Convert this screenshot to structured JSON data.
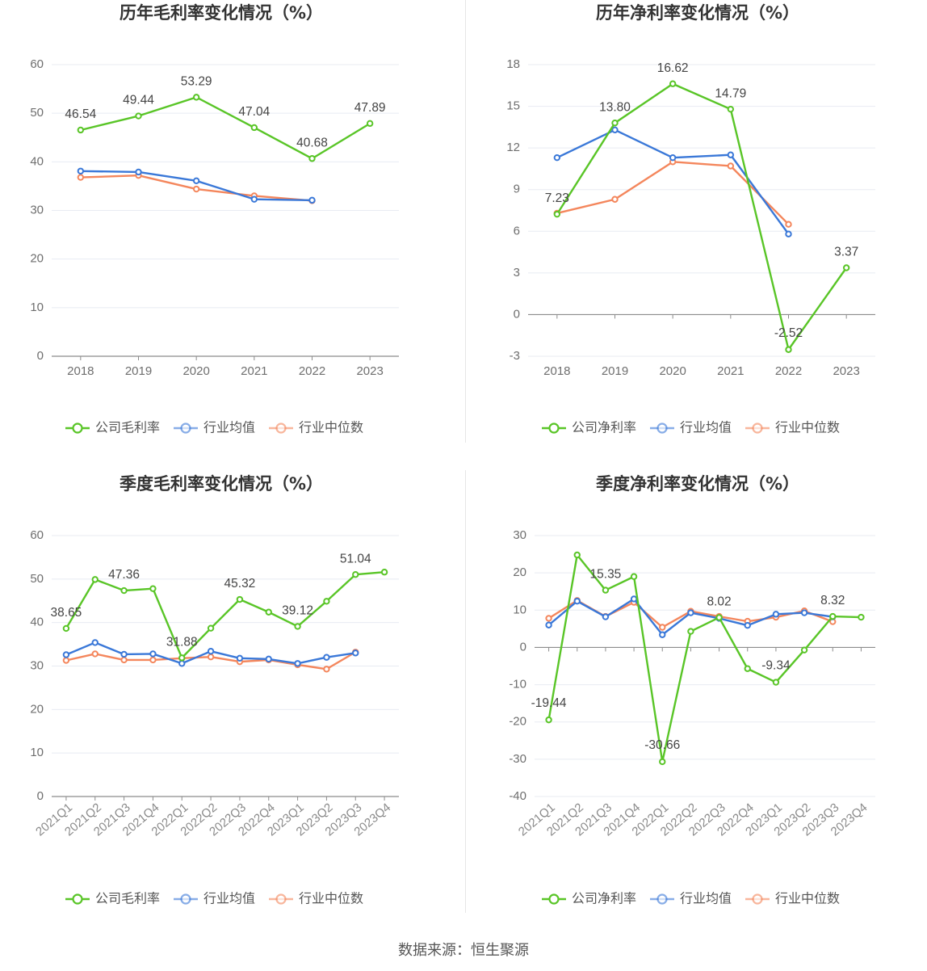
{
  "footer": {
    "source": "数据来源：恒生聚源"
  },
  "colors": {
    "company": "#59c527",
    "avg": "#3a78d8",
    "median": "#f4865c"
  },
  "chart_data": [
    {
      "type": "line",
      "title": "历年毛利率变化情况（%）",
      "categories": [
        "2018",
        "2019",
        "2020",
        "2021",
        "2022",
        "2023"
      ],
      "ylim": [
        0,
        60
      ],
      "yticks": [
        0,
        10,
        20,
        30,
        40,
        50,
        60
      ],
      "series": [
        {
          "name": "公司毛利率",
          "values": [
            46.54,
            49.44,
            53.29,
            47.04,
            40.68,
            47.89
          ]
        },
        {
          "name": "行业均值",
          "values": [
            38.1,
            37.9,
            36.1,
            32.3,
            32.1,
            null
          ]
        },
        {
          "name": "行业中位数",
          "values": [
            36.8,
            37.2,
            34.4,
            33.0,
            32.0,
            null
          ]
        }
      ],
      "data_labels": [
        "46.54",
        "49.44",
        "53.29",
        "47.04",
        "40.68",
        "47.89"
      ],
      "legend": "bottom"
    },
    {
      "type": "line",
      "title": "历年净利率变化情况（%）",
      "categories": [
        "2018",
        "2019",
        "2020",
        "2021",
        "2022",
        "2023"
      ],
      "ylim": [
        -3,
        18
      ],
      "yticks": [
        -3,
        0,
        3,
        6,
        9,
        12,
        15,
        18
      ],
      "series": [
        {
          "name": "公司净利率",
          "values": [
            7.23,
            13.8,
            16.62,
            14.79,
            -2.52,
            3.37
          ]
        },
        {
          "name": "行业均值",
          "values": [
            11.3,
            13.3,
            11.3,
            11.5,
            5.8,
            null
          ]
        },
        {
          "name": "行业中位数",
          "values": [
            7.3,
            8.3,
            11.0,
            10.7,
            6.5,
            null
          ]
        }
      ],
      "data_labels": [
        "7.23",
        "13.80",
        "16.62",
        "14.79",
        "-2.52",
        "3.37"
      ],
      "legend": "bottom"
    },
    {
      "type": "line",
      "title": "季度毛利率变化情况（%）",
      "categories": [
        "2021Q1",
        "2021Q2",
        "2021Q3",
        "2021Q4",
        "2022Q1",
        "2022Q2",
        "2022Q3",
        "2022Q4",
        "2023Q1",
        "2023Q2",
        "2023Q3",
        "2023Q4"
      ],
      "ylim": [
        0,
        60
      ],
      "yticks": [
        0,
        10,
        20,
        30,
        40,
        50,
        60
      ],
      "series": [
        {
          "name": "公司毛利率",
          "values": [
            38.65,
            49.9,
            47.36,
            47.8,
            31.88,
            38.7,
            45.32,
            42.4,
            39.12,
            44.9,
            51.04,
            51.6
          ]
        },
        {
          "name": "行业均值",
          "values": [
            32.6,
            35.4,
            32.7,
            32.8,
            30.6,
            33.4,
            31.8,
            31.6,
            30.6,
            32.0,
            33.0,
            null
          ]
        },
        {
          "name": "行业中位数",
          "values": [
            31.3,
            32.8,
            31.4,
            31.4,
            31.8,
            32.1,
            31.0,
            31.4,
            30.3,
            29.3,
            33.2,
            null
          ]
        }
      ],
      "data_labels": [
        "38.65",
        "",
        "47.36",
        "",
        "31.88",
        "",
        "45.32",
        "",
        "39.12",
        "",
        "51.04",
        ""
      ],
      "legend": "bottom"
    },
    {
      "type": "line",
      "title": "季度净利率变化情况（%）",
      "categories": [
        "2021Q1",
        "2021Q2",
        "2021Q3",
        "2021Q4",
        "2022Q1",
        "2022Q2",
        "2022Q3",
        "2022Q4",
        "2023Q1",
        "2023Q2",
        "2023Q3",
        "2023Q4"
      ],
      "ylim": [
        -40,
        30
      ],
      "yticks": [
        -40,
        -30,
        -20,
        -10,
        0,
        10,
        20,
        30
      ],
      "series": [
        {
          "name": "公司净利率",
          "values": [
            -19.44,
            24.8,
            15.35,
            19.0,
            -30.66,
            4.3,
            8.02,
            -5.7,
            -9.34,
            -0.7,
            8.32,
            8.1
          ]
        },
        {
          "name": "行业均值",
          "values": [
            6.0,
            12.4,
            8.2,
            13.0,
            3.4,
            9.3,
            7.8,
            5.9,
            8.9,
            9.3,
            8.2,
            null
          ]
        },
        {
          "name": "行业中位数",
          "values": [
            7.8,
            12.6,
            8.3,
            12.1,
            5.4,
            9.7,
            8.3,
            7.0,
            8.1,
            9.8,
            6.9,
            null
          ]
        }
      ],
      "data_labels": [
        "-19.44",
        "",
        "15.35",
        "",
        "-30.66",
        "",
        "8.02",
        "",
        "-9.34",
        "",
        "8.32",
        ""
      ],
      "legend": "bottom"
    }
  ]
}
